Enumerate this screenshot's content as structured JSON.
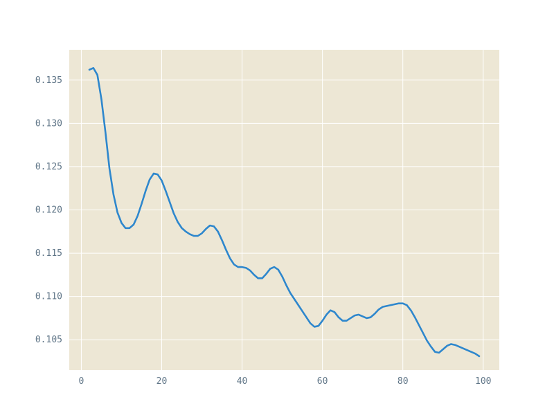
{
  "colors": {
    "plot_background": "#ede7d5",
    "grid": "#ffffff",
    "line": "#2e87cd",
    "tick_text": "#5f7587"
  },
  "chart_data": {
    "type": "line",
    "title": "",
    "xlabel": "",
    "ylabel": "",
    "xlim": [
      -3,
      104
    ],
    "ylim": [
      0.1015,
      0.1385
    ],
    "grid": true,
    "xticks": [
      0,
      20,
      40,
      60,
      80,
      100
    ],
    "yticks": [
      0.105,
      0.11,
      0.115,
      0.12,
      0.125,
      0.13,
      0.135
    ],
    "xtick_labels": [
      "0",
      "20",
      "40",
      "60",
      "80",
      "100"
    ],
    "ytick_labels": [
      "0.105",
      "0.110",
      "0.115",
      "0.120",
      "0.125",
      "0.130",
      "0.135"
    ],
    "series": [
      {
        "x": [
          2,
          3,
          4,
          5,
          6,
          7,
          8,
          9,
          10,
          11,
          12,
          13,
          14,
          15,
          16,
          17,
          18,
          19,
          20,
          21,
          22,
          23,
          24,
          25,
          26,
          27,
          28,
          29,
          30,
          31,
          32,
          33,
          34,
          35,
          36,
          37,
          38,
          39,
          40,
          41,
          42,
          43,
          44,
          45,
          46,
          47,
          48,
          49,
          50,
          51,
          52,
          53,
          54,
          55,
          56,
          57,
          58,
          59,
          60,
          61,
          62,
          63,
          64,
          65,
          66,
          67,
          68,
          69,
          70,
          71,
          72,
          73,
          74,
          75,
          76,
          77,
          78,
          79,
          80,
          81,
          82,
          83,
          84,
          85,
          86,
          87,
          88,
          89,
          90,
          91,
          92,
          93,
          94,
          95,
          96,
          97,
          98,
          99
        ],
        "y": [
          0.1362,
          0.1364,
          0.1356,
          0.1328,
          0.129,
          0.1248,
          0.1218,
          0.1197,
          0.1185,
          0.1179,
          0.1179,
          0.1183,
          0.1193,
          0.1207,
          0.1222,
          0.1235,
          0.1242,
          0.1241,
          0.1234,
          0.1222,
          0.1209,
          0.1196,
          0.1186,
          0.1179,
          0.1175,
          0.1172,
          0.117,
          0.117,
          0.1173,
          0.1178,
          0.1182,
          0.1181,
          0.1175,
          0.1165,
          0.1154,
          0.1144,
          0.1137,
          0.1134,
          0.1134,
          0.1133,
          0.113,
          0.1125,
          0.1121,
          0.1121,
          0.1126,
          0.1132,
          0.1134,
          0.1131,
          0.1123,
          0.1113,
          0.1104,
          0.1097,
          0.109,
          0.1083,
          0.1076,
          0.1069,
          0.1065,
          0.1066,
          0.1072,
          0.1079,
          0.1084,
          0.1082,
          0.1076,
          0.1072,
          0.1072,
          0.1075,
          0.1078,
          0.1079,
          0.1077,
          0.1075,
          0.1076,
          0.108,
          0.1085,
          0.1088,
          0.1089,
          0.109,
          0.1091,
          0.1092,
          0.1092,
          0.109,
          0.1084,
          0.1076,
          0.1067,
          0.1058,
          0.1049,
          0.1042,
          0.1036,
          0.1035,
          0.1039,
          0.1043,
          0.1045,
          0.1044,
          0.1042,
          0.104,
          0.1038,
          0.1036,
          0.1034,
          0.1031
        ]
      }
    ]
  }
}
